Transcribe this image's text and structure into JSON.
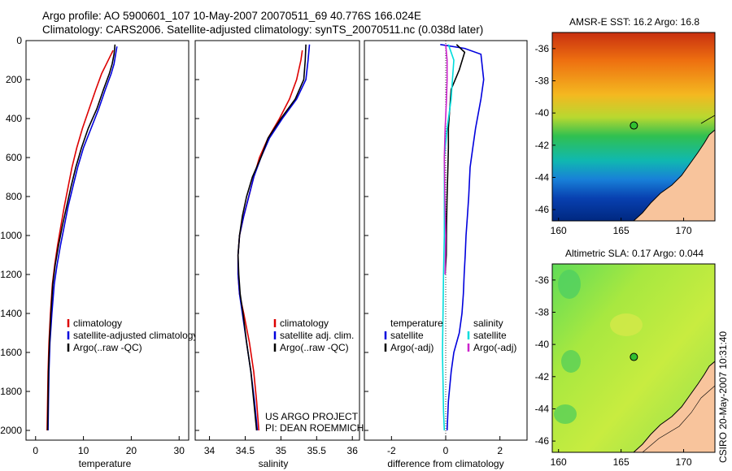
{
  "title": {
    "line1": "Argo profile: AO 5900601_107 10-May-2007 20070511_69 40.776S 166.024E",
    "line2": "Climatology: CARS2006. Satellite-adjusted climatology: synTS_20070511.nc (0.038d later)"
  },
  "side_label": "CSIRO 20-May-2007 10:31:40",
  "colors": {
    "climatology": "#dd0000",
    "satellite": "#0000dd",
    "argo": "#000000",
    "argo_adj_salinity": "#cc22cc",
    "satellite_salinity": "#00dddd",
    "land": "#f8c49c"
  },
  "chart_data": [
    {
      "type": "line",
      "name": "temperature-panel",
      "xlabel": "temperature",
      "ylabel": "",
      "xlim": [
        -2,
        32
      ],
      "ylim": [
        2050,
        0
      ],
      "xticks": [
        0,
        10,
        20,
        30
      ],
      "yticks": [
        0,
        200,
        400,
        600,
        800,
        1000,
        1200,
        1400,
        1600,
        1800,
        2000
      ],
      "legend": {
        "placement": "lower-right",
        "entries": [
          "climatology",
          "satellite-adjusted climatology",
          "Argo(..raw -QC)"
        ]
      },
      "series": [
        {
          "name": "climatology",
          "color": "#dd0000",
          "x": [
            16.2,
            15.6,
            14.8,
            13.8,
            12.6,
            11.2,
            9.8,
            8.6,
            7.6,
            6.8,
            6.0,
            5.3,
            4.6,
            4.0,
            3.5,
            3.1,
            2.8,
            2.6,
            2.5,
            2.4
          ],
          "y": [
            50,
            80,
            120,
            170,
            250,
            350,
            450,
            550,
            650,
            750,
            850,
            950,
            1050,
            1150,
            1250,
            1400,
            1550,
            1700,
            1850,
            2000
          ]
        },
        {
          "name": "satellite-adjusted climatology",
          "color": "#0000dd",
          "x": [
            17.0,
            16.8,
            16.4,
            15.8,
            14.6,
            13.2,
            11.6,
            10.0,
            8.8,
            7.8,
            6.8,
            6.0,
            5.2,
            4.5,
            3.9,
            3.4,
            3.0,
            2.8,
            2.7,
            2.6
          ],
          "y": [
            30,
            60,
            120,
            170,
            250,
            350,
            450,
            550,
            650,
            750,
            850,
            950,
            1050,
            1150,
            1250,
            1400,
            1550,
            1700,
            1850,
            2000
          ]
        },
        {
          "name": "Argo(..raw -QC)",
          "color": "#000000",
          "x": [
            16.6,
            16.4,
            16.0,
            15.4,
            14.2,
            12.8,
            11.0,
            9.6,
            8.4,
            7.4,
            6.5,
            5.6,
            4.8,
            4.1,
            3.6,
            3.2,
            2.9,
            2.7,
            2.6,
            2.5
          ],
          "y": [
            20,
            70,
            120,
            170,
            250,
            350,
            450,
            550,
            650,
            750,
            850,
            950,
            1050,
            1150,
            1250,
            1400,
            1550,
            1700,
            1850,
            2000
          ]
        }
      ]
    },
    {
      "type": "line",
      "name": "salinity-panel",
      "xlabel": "salinity",
      "ylabel": "",
      "xlim": [
        33.8,
        36.1
      ],
      "ylim": [
        2050,
        0
      ],
      "xticks": [
        34,
        34.5,
        35,
        35.5,
        36
      ],
      "legend": {
        "placement": "lower-right",
        "entries": [
          "climatology",
          "satellite adj. clim.",
          "Argo(..raw -QC)"
        ]
      },
      "annotations": [
        "US ARGO PROJECT",
        "PI: DEAN ROEMMICH"
      ],
      "series": [
        {
          "name": "climatology",
          "color": "#dd0000",
          "x": [
            35.3,
            35.28,
            35.22,
            35.12,
            34.98,
            34.82,
            34.7,
            34.62,
            34.55,
            34.48,
            34.42,
            34.4,
            34.4,
            34.42,
            34.48,
            34.56,
            34.62,
            34.66,
            34.69
          ],
          "y": [
            50,
            100,
            200,
            300,
            400,
            500,
            600,
            700,
            800,
            900,
            1000,
            1100,
            1200,
            1300,
            1400,
            1550,
            1700,
            1850,
            2000
          ]
        },
        {
          "name": "satellite adj. clim.",
          "color": "#0000dd",
          "x": [
            35.4,
            35.38,
            35.35,
            35.22,
            35.02,
            34.84,
            34.72,
            34.62,
            34.55,
            34.48,
            34.42,
            34.4,
            34.4,
            34.42,
            34.46,
            34.52,
            34.58,
            34.63,
            34.67
          ],
          "y": [
            20,
            100,
            200,
            300,
            400,
            500,
            600,
            700,
            800,
            900,
            1000,
            1100,
            1200,
            1300,
            1400,
            1550,
            1700,
            1850,
            2000
          ]
        },
        {
          "name": "Argo(..raw -QC)",
          "color": "#000000",
          "x": [
            35.35,
            35.34,
            35.32,
            35.2,
            35.0,
            34.82,
            34.72,
            34.6,
            34.52,
            34.46,
            34.42,
            34.4,
            34.41,
            34.43,
            34.47,
            34.52,
            34.58,
            34.62,
            34.66
          ],
          "y": [
            20,
            100,
            200,
            300,
            400,
            500,
            600,
            700,
            800,
            900,
            1000,
            1100,
            1200,
            1300,
            1400,
            1550,
            1700,
            1850,
            2000
          ]
        }
      ]
    },
    {
      "type": "line",
      "name": "difference-panel",
      "xlabel": "difference from climatology",
      "ylabel": "",
      "xlim": [
        -3,
        3
      ],
      "ylim": [
        2050,
        0
      ],
      "xticks": [
        -2,
        0,
        2
      ],
      "legend": {
        "placement": "lower-middle",
        "groups": [
          {
            "heading": "temperature",
            "entries": [
              "satellite",
              "Argo(-adj)"
            ]
          },
          {
            "heading": "salinity",
            "entries": [
              "satellite",
              "Argo(-adj)"
            ]
          }
        ]
      },
      "series": [
        {
          "name": "temperature satellite",
          "color": "#0000dd",
          "x": [
            -0.2,
            0.7,
            1.3,
            1.4,
            1.3,
            1.1,
            1.0,
            0.9,
            0.85,
            0.8,
            0.75,
            0.72,
            0.68,
            0.65,
            0.6,
            0.5,
            0.3,
            0.2,
            0.1,
            0.05
          ],
          "y": [
            20,
            40,
            70,
            200,
            300,
            450,
            550,
            650,
            800,
            900,
            1000,
            1100,
            1200,
            1300,
            1400,
            1500,
            1600,
            1700,
            1850,
            2000
          ]
        },
        {
          "name": "temperature Argo(-adj)",
          "color": "#000000",
          "x": [
            0.4,
            0.7,
            0.5,
            0.2,
            0.15,
            0.1,
            0.1,
            0.08,
            0.05,
            0.03,
            0.02,
            -0.02
          ],
          "y": [
            20,
            60,
            150,
            250,
            350,
            450,
            550,
            650,
            800,
            950,
            1100,
            1200
          ]
        },
        {
          "name": "salinity satellite",
          "color": "#00dddd",
          "x": [
            0.1,
            0.3,
            0.25,
            0.2,
            0.05,
            -0.05,
            -0.05,
            -0.05,
            -0.08,
            -0.1,
            -0.12,
            -0.1,
            -0.08,
            -0.05
          ],
          "y": [
            20,
            100,
            200,
            300,
            450,
            600,
            800,
            1000,
            1200,
            1400,
            1600,
            1750,
            1900,
            2000
          ]
        },
        {
          "name": "salinity Argo(-adj)",
          "color": "#cc22cc",
          "x": [
            0.0,
            0.05,
            0.05,
            0.03,
            -0.02,
            -0.05,
            -0.03,
            0.0,
            -0.02
          ],
          "y": [
            20,
            100,
            200,
            300,
            450,
            600,
            800,
            1000,
            1200
          ]
        }
      ]
    },
    {
      "type": "heatmap",
      "name": "sst-map",
      "title": "AMSR-E SST: 16.2 Argo: 16.8",
      "xlim": [
        159.5,
        172.5
      ],
      "ylim": [
        -46.7,
        -35.0
      ],
      "xticks": [
        160,
        165,
        170
      ],
      "yticks": [
        -36,
        -38,
        -40,
        -42,
        -44,
        -46
      ],
      "marker": {
        "lon": 166.024,
        "lat": -40.776
      }
    },
    {
      "type": "heatmap",
      "name": "sla-map",
      "title": "Altimetric SLA: 0.17 Argo: 0.044",
      "xlim": [
        159.5,
        172.5
      ],
      "ylim": [
        -46.7,
        -35.0
      ],
      "xticks": [
        160,
        165,
        170
      ],
      "yticks": [
        -36,
        -38,
        -40,
        -42,
        -44,
        -46
      ],
      "marker": {
        "lon": 166.024,
        "lat": -40.776
      }
    }
  ]
}
